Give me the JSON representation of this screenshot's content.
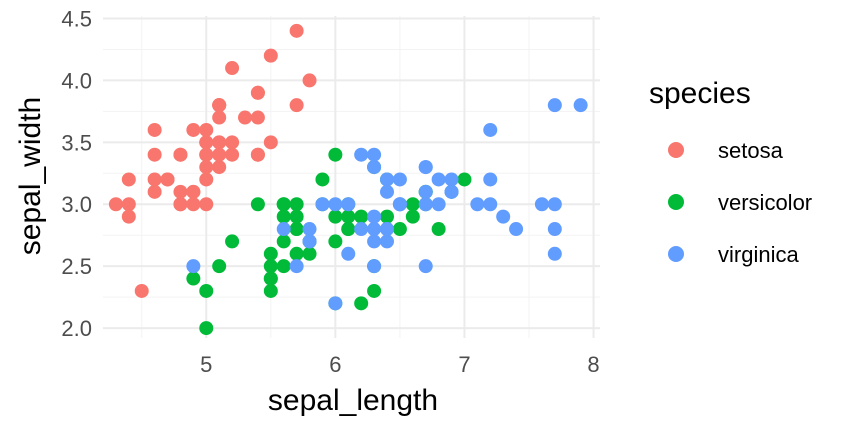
{
  "chart_data": {
    "type": "scatter",
    "title": "",
    "xlabel": "sepal_length",
    "ylabel": "sepal_width",
    "xlim": [
      4.2,
      8.05
    ],
    "ylim": [
      1.92,
      4.52
    ],
    "x_ticks": [
      5,
      6,
      7,
      8
    ],
    "x_tick_labels": [
      "5",
      "6",
      "7",
      "8"
    ],
    "y_ticks": [
      2.0,
      2.5,
      3.0,
      3.5,
      4.0,
      4.5
    ],
    "y_tick_labels": [
      "2.0",
      "2.5",
      "3.0",
      "3.5",
      "4.0",
      "4.5"
    ],
    "grid": true,
    "legend": {
      "title": "species",
      "position": "right"
    },
    "series": [
      {
        "name": "setosa",
        "color": "#F8766D",
        "points": [
          [
            5.1,
            3.5
          ],
          [
            4.9,
            3.0
          ],
          [
            4.7,
            3.2
          ],
          [
            4.6,
            3.1
          ],
          [
            5.0,
            3.6
          ],
          [
            5.4,
            3.9
          ],
          [
            4.6,
            3.4
          ],
          [
            5.0,
            3.4
          ],
          [
            4.4,
            2.9
          ],
          [
            4.9,
            3.1
          ],
          [
            5.4,
            3.7
          ],
          [
            4.8,
            3.4
          ],
          [
            4.8,
            3.0
          ],
          [
            4.3,
            3.0
          ],
          [
            5.8,
            4.0
          ],
          [
            5.7,
            4.4
          ],
          [
            5.4,
            3.9
          ],
          [
            5.1,
            3.5
          ],
          [
            5.7,
            3.8
          ],
          [
            5.1,
            3.8
          ],
          [
            5.4,
            3.4
          ],
          [
            5.1,
            3.7
          ],
          [
            4.6,
            3.6
          ],
          [
            5.1,
            3.3
          ],
          [
            4.8,
            3.4
          ],
          [
            5.0,
            3.0
          ],
          [
            5.0,
            3.4
          ],
          [
            5.2,
            3.5
          ],
          [
            5.2,
            3.4
          ],
          [
            4.7,
            3.2
          ],
          [
            4.8,
            3.1
          ],
          [
            5.4,
            3.4
          ],
          [
            5.2,
            4.1
          ],
          [
            5.5,
            4.2
          ],
          [
            4.9,
            3.1
          ],
          [
            5.0,
            3.2
          ],
          [
            5.5,
            3.5
          ],
          [
            4.9,
            3.6
          ],
          [
            4.4,
            3.0
          ],
          [
            5.1,
            3.4
          ],
          [
            5.0,
            3.5
          ],
          [
            4.5,
            2.3
          ],
          [
            4.4,
            3.2
          ],
          [
            5.0,
            3.5
          ],
          [
            5.1,
            3.8
          ],
          [
            4.8,
            3.0
          ],
          [
            5.1,
            3.8
          ],
          [
            4.6,
            3.2
          ],
          [
            5.3,
            3.7
          ],
          [
            5.0,
            3.3
          ]
        ]
      },
      {
        "name": "versicolor",
        "color": "#00BA38",
        "points": [
          [
            7.0,
            3.2
          ],
          [
            6.4,
            3.2
          ],
          [
            6.9,
            3.1
          ],
          [
            5.5,
            2.3
          ],
          [
            6.5,
            2.8
          ],
          [
            5.7,
            2.8
          ],
          [
            6.3,
            3.3
          ],
          [
            4.9,
            2.4
          ],
          [
            6.6,
            2.9
          ],
          [
            5.2,
            2.7
          ],
          [
            5.0,
            2.0
          ],
          [
            5.9,
            3.0
          ],
          [
            6.0,
            2.2
          ],
          [
            6.1,
            2.9
          ],
          [
            5.6,
            2.9
          ],
          [
            6.7,
            3.1
          ],
          [
            5.6,
            3.0
          ],
          [
            5.8,
            2.7
          ],
          [
            6.2,
            2.2
          ],
          [
            5.6,
            2.5
          ],
          [
            5.9,
            3.2
          ],
          [
            6.1,
            2.8
          ],
          [
            6.3,
            2.5
          ],
          [
            6.1,
            2.8
          ],
          [
            6.4,
            2.9
          ],
          [
            6.6,
            3.0
          ],
          [
            6.8,
            2.8
          ],
          [
            6.7,
            3.0
          ],
          [
            6.0,
            2.9
          ],
          [
            5.7,
            2.6
          ],
          [
            5.5,
            2.4
          ],
          [
            5.5,
            2.4
          ],
          [
            5.8,
            2.7
          ],
          [
            6.0,
            2.7
          ],
          [
            5.4,
            3.0
          ],
          [
            6.0,
            3.4
          ],
          [
            6.7,
            3.1
          ],
          [
            6.3,
            2.3
          ],
          [
            5.6,
            3.0
          ],
          [
            5.5,
            2.5
          ],
          [
            5.5,
            2.6
          ],
          [
            6.1,
            3.0
          ],
          [
            5.8,
            2.6
          ],
          [
            5.0,
            2.3
          ],
          [
            5.6,
            2.7
          ],
          [
            5.7,
            3.0
          ],
          [
            5.7,
            2.9
          ],
          [
            6.2,
            2.9
          ],
          [
            5.1,
            2.5
          ],
          [
            5.7,
            2.8
          ]
        ]
      },
      {
        "name": "virginica",
        "color": "#619CFF",
        "points": [
          [
            6.3,
            3.3
          ],
          [
            5.8,
            2.7
          ],
          [
            7.1,
            3.0
          ],
          [
            6.3,
            2.9
          ],
          [
            6.5,
            3.0
          ],
          [
            7.6,
            3.0
          ],
          [
            4.9,
            2.5
          ],
          [
            7.3,
            2.9
          ],
          [
            6.7,
            2.5
          ],
          [
            7.2,
            3.6
          ],
          [
            6.5,
            3.2
          ],
          [
            6.4,
            2.7
          ],
          [
            6.8,
            3.0
          ],
          [
            5.7,
            2.5
          ],
          [
            5.8,
            2.8
          ],
          [
            6.4,
            3.2
          ],
          [
            6.5,
            3.0
          ],
          [
            7.7,
            3.8
          ],
          [
            7.7,
            2.6
          ],
          [
            6.0,
            2.2
          ],
          [
            6.9,
            3.2
          ],
          [
            5.6,
            2.8
          ],
          [
            7.7,
            2.8
          ],
          [
            6.3,
            2.7
          ],
          [
            6.7,
            3.3
          ],
          [
            7.2,
            3.2
          ],
          [
            6.2,
            2.8
          ],
          [
            6.1,
            3.0
          ],
          [
            6.4,
            2.8
          ],
          [
            7.2,
            3.0
          ],
          [
            7.4,
            2.8
          ],
          [
            7.9,
            3.8
          ],
          [
            6.4,
            2.8
          ],
          [
            6.3,
            2.8
          ],
          [
            6.1,
            2.6
          ],
          [
            7.7,
            3.0
          ],
          [
            6.3,
            3.4
          ],
          [
            6.4,
            3.1
          ],
          [
            6.0,
            3.0
          ],
          [
            6.9,
            3.1
          ],
          [
            6.7,
            3.1
          ],
          [
            6.9,
            3.1
          ],
          [
            5.8,
            2.7
          ],
          [
            6.8,
            3.2
          ],
          [
            6.7,
            3.3
          ],
          [
            6.7,
            3.0
          ],
          [
            6.3,
            2.5
          ],
          [
            6.5,
            3.0
          ],
          [
            6.2,
            3.4
          ],
          [
            5.9,
            3.0
          ]
        ]
      }
    ]
  }
}
